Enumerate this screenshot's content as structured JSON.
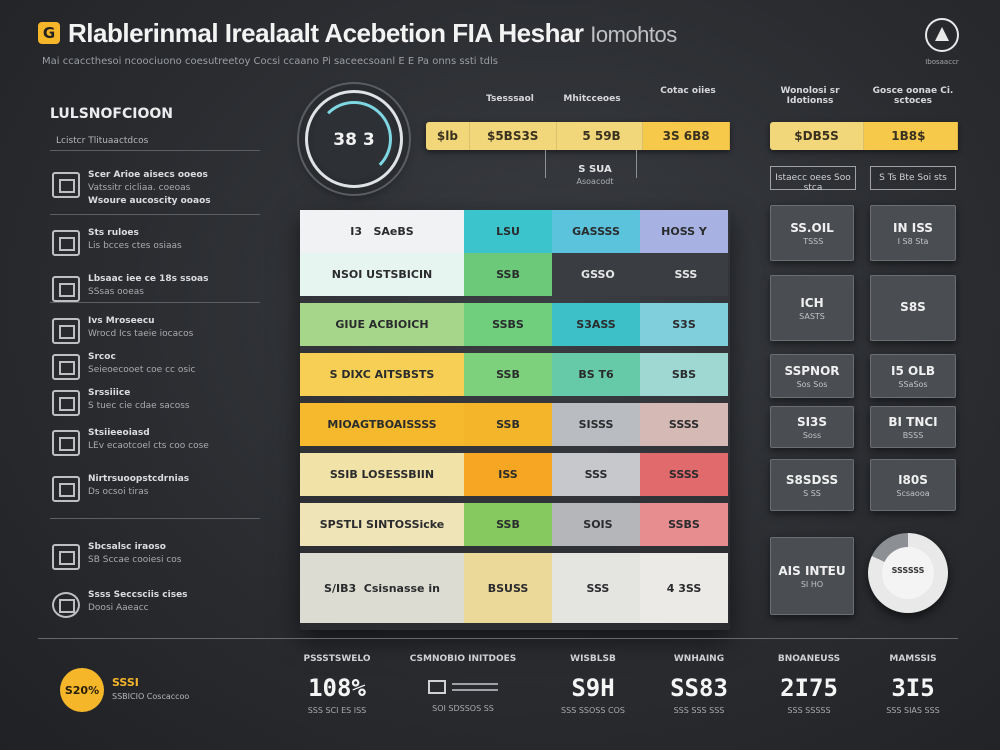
{
  "header": {
    "badge": "G",
    "title": "Rlablerinmal Irealaalt Acebetion FIA Heshar",
    "title_suffix": "Iomohtos",
    "subtitle": "Mai ccaccthesoi ncoociuono coesutreetoy Cocsi ccaano Pi saceecsoanl E E Pa onns ssti tdls",
    "brand_label": "Ibosaaccr"
  },
  "left_panel": {
    "title": "LULSNOFCIOON",
    "subtitle": "Lcistcr Tlituaactdcos",
    "items": [
      {
        "t1": "Scer Arioe aisecs ooeos",
        "t2": "Vatssitr cicliaa. coeoas"
      },
      {
        "t1": "Wsoure aucoscity ooaos",
        "t2": ""
      },
      {
        "t1": "Sts ruloes",
        "t2": "Lis bcces ctes osiaas"
      },
      {
        "t1": "Lbsaac iee ce 18s ssoas",
        "t2": "SSsas ooeas"
      },
      {
        "t1": "Ivs Mroseecu",
        "t2": "Wrocd Ics taeie iocacos"
      },
      {
        "t1": "Srcoc",
        "t2": "Seieoecooet coe cc osic"
      },
      {
        "t1": "Srssiiice",
        "t2": "S tuec cie cdae sacoss"
      },
      {
        "t1": "Stsiieeoiasd",
        "t2": "LEv ecaotcoel cts coo cose"
      },
      {
        "t1": "Nirtrsuoopstcdrnias",
        "t2": "Ds ocsoi tiras"
      },
      {
        "t1": "Sbcsalsc iraoso",
        "t2": "SB Sccae cooiesi cos"
      },
      {
        "t1": "Ssss Seccsciis cises",
        "t2": "Doosi Aaeacc"
      }
    ]
  },
  "gauge": {
    "value": "38 3"
  },
  "top_headers": {
    "h1": "Tsesssaol",
    "h2": "Mhitcceoes",
    "h3": "Cotac oiies",
    "h4": "Wonolosi sr Idotionss",
    "h5": "Gosce oonae Ci. sctoces"
  },
  "yellow_bar_left": [
    "$lb",
    "$5BS3S",
    " 5 59B",
    "3S 6B8"
  ],
  "yellow_bar_right": [
    "$DB5S",
    " 1B8$  "
  ],
  "note_left": {
    "v": "S SUA",
    "s": "Asoacodt"
  },
  "note_right_1": "Istaecc oees Soo stca",
  "note_right_2": "S Ts Bte Soi sts",
  "table": {
    "rows": [
      {
        "cells": [
          "I3   SAeBS",
          "LSU",
          "GASSSS",
          "HOSS Y"
        ]
      },
      {
        "cells": [
          "NSOI USTSBICIN",
          "SSB",
          " GSSO",
          " SSS"
        ]
      },
      {
        "cells": [
          "GIUE ACBIOICH",
          "SSBS",
          "S3ASS",
          "S3S"
        ]
      },
      {
        "cells": [
          "S DIXC AITSBSTS",
          "SSB",
          "BS T6",
          "SBS"
        ]
      },
      {
        "cells": [
          "MIOAGTBOAISSSS",
          "SSB",
          "SISSS",
          "SSSS"
        ]
      },
      {
        "cells": [
          "SSIB LOSESSBIIN",
          "ISS",
          "SSS",
          "SSSS"
        ]
      },
      {
        "cells": [
          "SPSTLI SINTOSSicke",
          "SSB",
          " SOIS",
          "SSBS"
        ]
      },
      {
        "cells": [
          "S/IB3  Csisnasse in",
          "BSUSS",
          " SSS",
          "4 3SS"
        ]
      }
    ]
  },
  "right_cards": [
    {
      "v": "SS.OIL",
      "s": " TSSS"
    },
    {
      "v": "IN ISS",
      "s": "I S8 Sta"
    },
    {
      "v": "ICH",
      "s": "SASTS"
    },
    {
      "v": "S8S",
      "s": ""
    },
    {
      "v": "SSPNOR",
      "s": "Sos Sos"
    },
    {
      "v": "I5 OLB",
      "s": "SSaSos"
    },
    {
      "v": "SI3S",
      "s": "Soss"
    },
    {
      "v": "BI TNCI",
      "s": "BSSS"
    },
    {
      "v": "S8SDSS",
      "s": "S SS"
    },
    {
      "v": "I80S",
      "s": "Scsaooa"
    },
    {
      "v": "AIS INTEU",
      "s": "SI HO"
    }
  ],
  "donut_label": "SSSSSS",
  "bottom": {
    "circle": "S20%",
    "left_t1": "SSSI",
    "left_t2": "SSBICIO Coscaccoo",
    "stats": [
      {
        "lbl": "PSSSTSWELO",
        "num": "108%",
        "sub": "SSS SCI ES ISS"
      },
      {
        "lbl": "CSMNOBIO INITDOES",
        "num": "",
        "sub": "SOI SDSSOS SS"
      },
      {
        "lbl": "WISBLSB",
        "num": "S9H",
        "sub": "SSS SSOSS COS"
      },
      {
        "lbl": "WNHAING",
        "num": "SS83",
        "sub": "SSS SSS SSS"
      },
      {
        "lbl": "BNOANEUSS",
        "num": "2I75",
        "sub": "SSS SSSSS"
      },
      {
        "lbl": "MAMSSIS",
        "num": "3I5",
        "sub": "SSS SIAS SSS"
      }
    ]
  }
}
